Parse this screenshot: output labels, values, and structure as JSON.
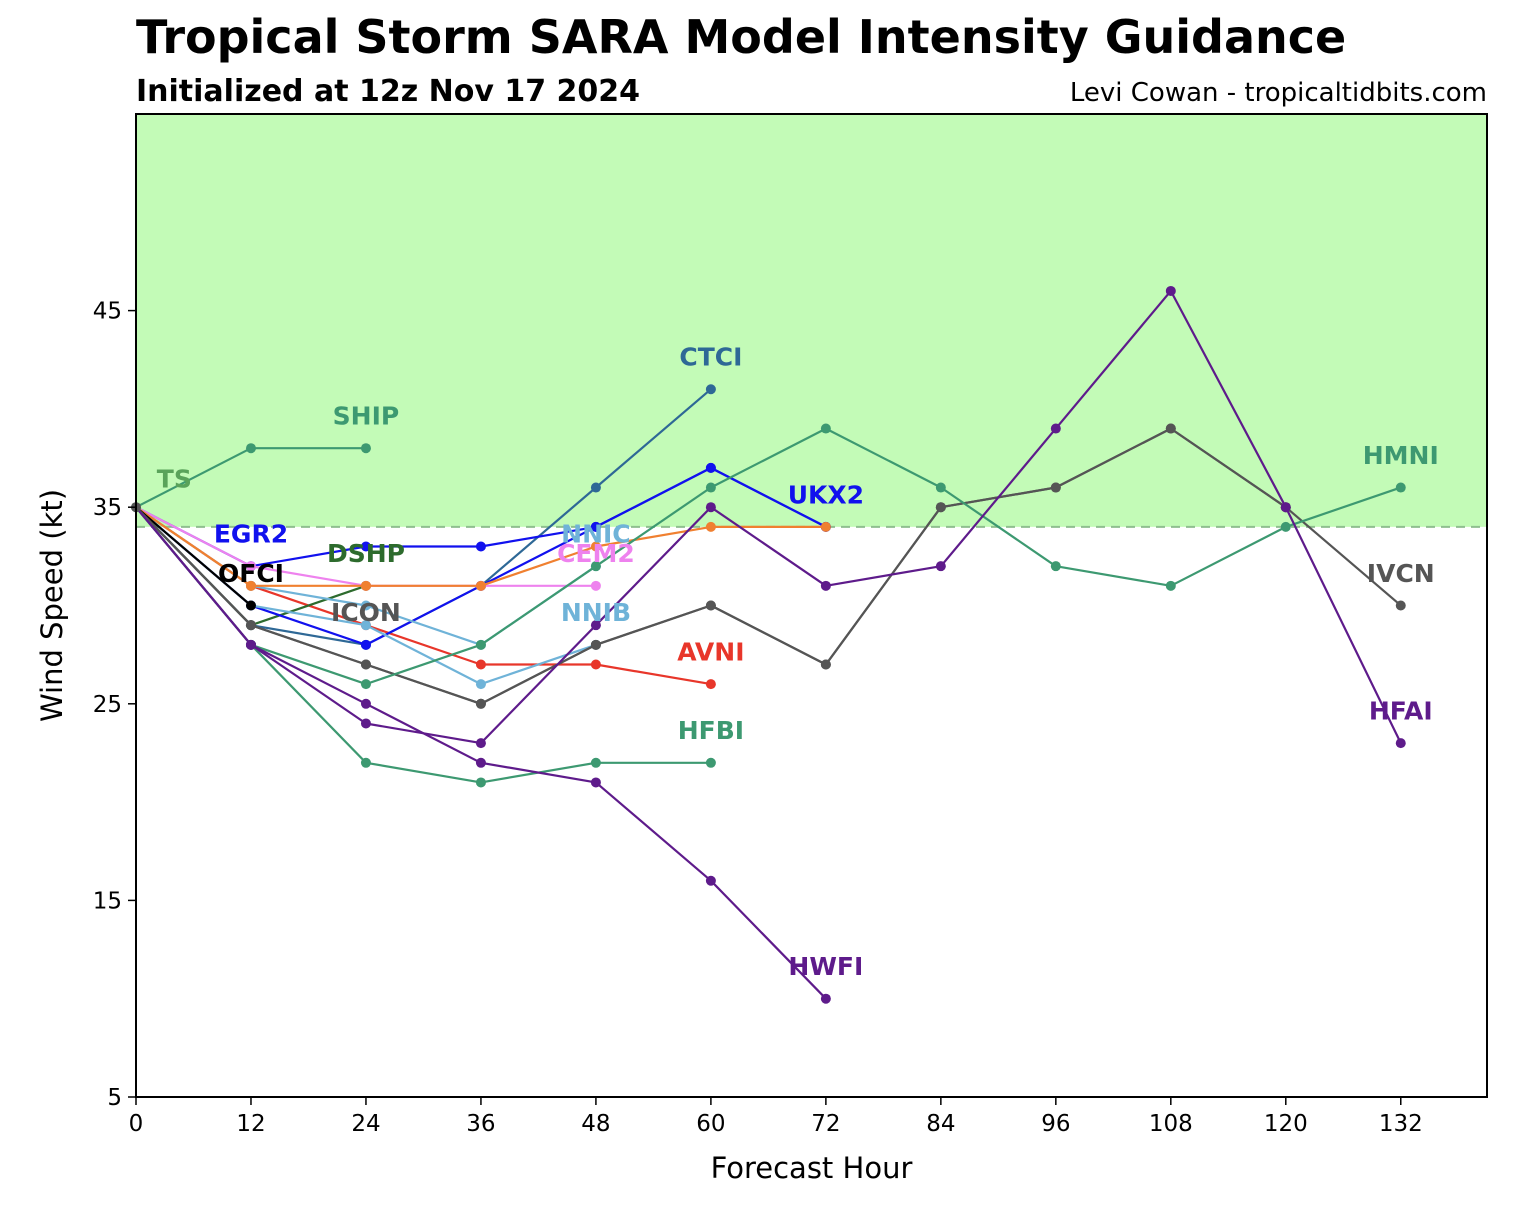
{
  "header": {
    "title": "Tropical Storm SARA Model Intensity Guidance",
    "subtitle": "Initialized at 12z Nov 17 2024",
    "credit": "Levi Cowan - tropicaltidbits.com"
  },
  "chart_data": {
    "type": "line",
    "title": "Tropical Storm SARA Model Intensity Guidance",
    "subtitle": "Initialized at 12z Nov 17 2024",
    "xlabel": "Forecast Hour",
    "ylabel": "Wind Speed (kt)",
    "xlim": [
      0,
      141
    ],
    "ylim": [
      5,
      55
    ],
    "xticks": [
      "0",
      "12",
      "24",
      "36",
      "48",
      "60",
      "72",
      "84",
      "96",
      "108",
      "120",
      "132"
    ],
    "yticks": [
      "5",
      "15",
      "25",
      "35",
      "45"
    ],
    "ts_threshold": 34,
    "colors": {
      "ts_fill": "#c3fbb7",
      "threshold_line": "#8fbf8f"
    },
    "series": [
      {
        "name": "AVNI",
        "color": "#e8362a",
        "x": [
          0,
          12,
          24,
          36,
          48,
          60
        ],
        "y": [
          35,
          31,
          29,
          27,
          27,
          26
        ],
        "label_pos": [
          60,
          27.2
        ]
      },
      {
        "name": "CTCI",
        "color": "#2e6896",
        "x": [
          0,
          12,
          24,
          36,
          48,
          60
        ],
        "y": [
          35,
          29,
          28,
          31,
          36,
          41
        ],
        "label_pos": [
          60,
          42.2
        ]
      },
      {
        "name": "SHIP",
        "color": "#3d9971",
        "x": [
          0,
          12,
          24
        ],
        "y": [
          35,
          38,
          38
        ],
        "label_pos": [
          24,
          39.2
        ]
      },
      {
        "name": "DSHP",
        "color": "#2d6b2d",
        "x": [
          0,
          12,
          24
        ],
        "y": [
          35,
          29,
          31
        ],
        "label_pos": [
          24,
          32.2
        ]
      },
      {
        "name": "EGR2",
        "color": "#1111ee",
        "x": [
          0,
          12,
          24,
          36,
          48,
          60,
          72
        ],
        "y": [
          35,
          32,
          33,
          33,
          34,
          37,
          34
        ],
        "label_pos": [
          12,
          33.2
        ]
      },
      {
        "name": "UKX2",
        "color": "#1111ee",
        "x": [
          0,
          12,
          24,
          36,
          48,
          60,
          72
        ],
        "y": [
          35,
          30,
          28,
          31,
          34,
          37,
          34
        ],
        "label_pos": [
          72,
          35.2
        ]
      },
      {
        "name": "CEM2",
        "color": "#ee82ee",
        "x": [
          0,
          12,
          24,
          36,
          48
        ],
        "y": [
          35,
          32,
          31,
          31,
          31
        ],
        "label_pos": [
          48,
          32.2
        ]
      },
      {
        "name": "NNIC",
        "color": "#6fb3d8",
        "x": [
          0,
          12,
          24,
          36,
          48
        ],
        "y": [
          35,
          31,
          30,
          28,
          32
        ],
        "label_pos": [
          48,
          33.2
        ]
      },
      {
        "name": "NNIB",
        "color": "#6fb3d8",
        "x": [
          0,
          12,
          24,
          36,
          48
        ],
        "y": [
          35,
          30,
          29,
          26,
          28
        ],
        "label_pos": [
          48,
          29.2
        ]
      },
      {
        "name": "",
        "color": "#f08030",
        "x": [
          0,
          12,
          24,
          36,
          48,
          60,
          72
        ],
        "y": [
          35,
          31,
          31,
          31,
          33,
          34,
          34
        ]
      },
      {
        "name": "OFCI",
        "color": "#000000",
        "x": [
          0,
          12
        ],
        "y": [
          35,
          30
        ],
        "label_pos": [
          12,
          31.2
        ]
      },
      {
        "name": "ICON",
        "color": "#555555",
        "x": [
          0,
          12,
          24,
          36,
          48,
          60,
          72,
          84,
          96,
          108,
          120
        ],
        "y": [
          35,
          29,
          27,
          25,
          28,
          30,
          27,
          35,
          36,
          39,
          35
        ],
        "label_pos": [
          24,
          29.2
        ]
      },
      {
        "name": "IVCN",
        "color": "#555555",
        "x": [
          0,
          12,
          24,
          36,
          48,
          60,
          72,
          84,
          96,
          108,
          120,
          132
        ],
        "y": [
          35,
          29,
          27,
          25,
          28,
          30,
          27,
          35,
          36,
          39,
          35,
          30
        ],
        "label_pos": [
          132,
          31.2
        ]
      },
      {
        "name": "HMNI",
        "color": "#3d9971",
        "x": [
          0,
          12,
          24,
          36,
          48,
          60,
          72,
          84,
          96,
          108,
          120,
          132
        ],
        "y": [
          35,
          28,
          26,
          28,
          32,
          36,
          39,
          36,
          32,
          31,
          34,
          36
        ],
        "label_pos": [
          132,
          37.2
        ]
      },
      {
        "name": "HFBI",
        "color": "#3d9971",
        "x": [
          0,
          12,
          24,
          36,
          48,
          60
        ],
        "y": [
          35,
          28,
          22,
          21,
          22,
          22
        ],
        "label_pos": [
          60,
          23.2
        ]
      },
      {
        "name": "HFAI",
        "color": "#5e1b8b",
        "x": [
          0,
          12,
          24,
          36,
          48,
          60,
          72,
          84,
          96,
          108,
          120,
          132
        ],
        "y": [
          35,
          28,
          24,
          23,
          29,
          35,
          31,
          32,
          39,
          46,
          35,
          23
        ],
        "label_pos": [
          132,
          24.2
        ]
      },
      {
        "name": "HWFI",
        "color": "#5e1b8b",
        "x": [
          0,
          12,
          24,
          36,
          48,
          60,
          72
        ],
        "y": [
          35,
          28,
          25,
          22,
          21,
          16,
          10
        ],
        "label_pos": [
          72,
          11.2
        ]
      },
      {
        "name": "TS",
        "color": "#5aa35a",
        "x": [
          0
        ],
        "y": [
          35
        ],
        "label_pos": [
          4,
          36.0
        ]
      }
    ]
  }
}
